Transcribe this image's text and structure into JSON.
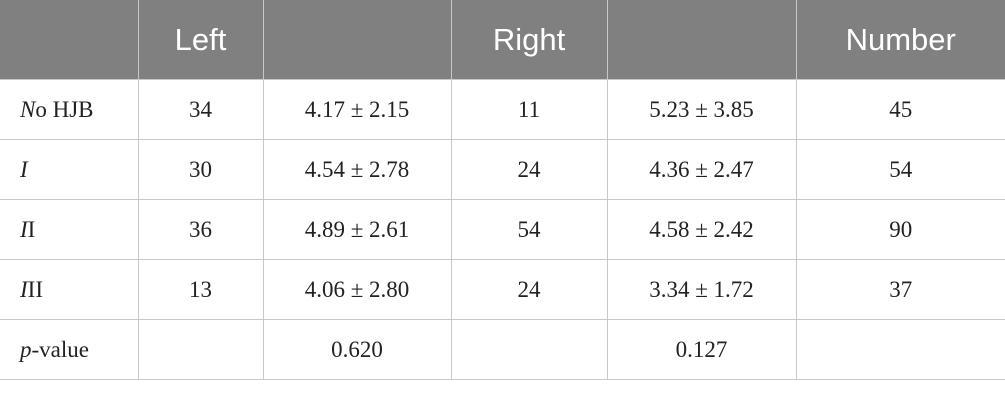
{
  "table": {
    "header": [
      "Left",
      "Right",
      "Number"
    ],
    "rows": [
      [
        "No HJB",
        34,
        "4.17 ± 2.15",
        11,
        "5.23 ± 3.85",
        45
      ],
      [
        "I",
        30,
        "4.54 ± 2.78",
        24,
        "4.36 ± 2.47",
        54
      ],
      [
        "II",
        36,
        "4.89 ± 2.61",
        54,
        "4.58 ± 2.42",
        90
      ],
      [
        "III",
        13,
        "4.06 ± 2.80",
        24,
        "3.34 ± 1.72",
        37
      ],
      [
        "p-value",
        null,
        "0.620",
        null,
        "0.127",
        null
      ]
    ]
  }
}
